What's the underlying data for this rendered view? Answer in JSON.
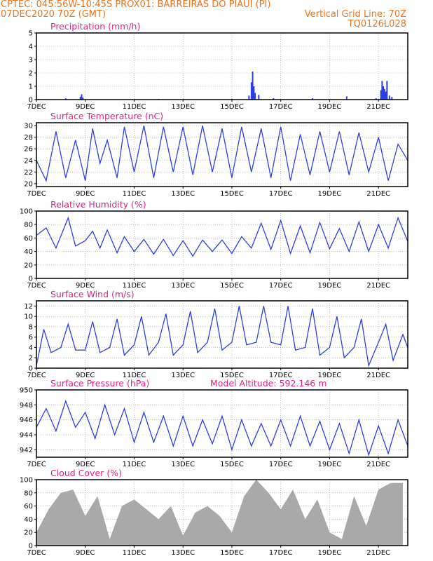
{
  "header": {
    "line1_left": "CPTEC:   045:56W-10:45S   PROX01: BARREIRAS DO PIAUI (PI)",
    "line2_left": "07DEC2020 70Z (GMT)",
    "line2_right": "Vertical Grid Line: 70Z",
    "line3_right": "TQ0126L028"
  },
  "colors": {
    "header": "#e8741c",
    "title": "#e0228a",
    "line": "#2c3fe0",
    "cloud": "#a9a9a9",
    "grid": "#9a9a9a"
  },
  "x_tick_labels": [
    "7DEC",
    "9DEC",
    "11DEC",
    "13DEC",
    "15DEC",
    "17DEC",
    "19DEC",
    "21DEC"
  ],
  "x_tick_days": [
    7,
    9,
    11,
    13,
    15,
    17,
    19,
    21
  ],
  "x_range_days": [
    7,
    22.2
  ],
  "chart_data": [
    {
      "type": "bar",
      "title": "Precipitation (mm/h)",
      "ylim": [
        0,
        5
      ],
      "yticks": [
        "0",
        "1",
        "2",
        "3",
        "4",
        "5"
      ],
      "x_days": [
        7.1,
        8.2,
        8.8,
        8.85,
        8.9,
        12.0,
        15.0,
        15.7,
        15.8,
        15.85,
        15.9,
        15.95,
        16.1,
        16.7,
        18.3,
        19.7,
        20.9,
        21.1,
        21.15,
        21.2,
        21.25,
        21.3,
        21.35,
        21.45,
        21.55
      ],
      "values": [
        0.05,
        0.1,
        0.2,
        0.4,
        0.15,
        0.05,
        0.05,
        0.3,
        1.3,
        2.1,
        1.0,
        0.5,
        0.35,
        0.1,
        0.1,
        0.25,
        0.1,
        0.7,
        1.4,
        1.0,
        0.8,
        0.6,
        1.4,
        0.3,
        0.2
      ]
    },
    {
      "type": "line",
      "title": "Surface Temperature (nC)",
      "ylim": [
        19.5,
        30.5
      ],
      "yticks": [
        "20",
        "22",
        "24",
        "26",
        "28",
        "30"
      ],
      "x_days": [
        7.0,
        7.4,
        7.8,
        8.2,
        8.6,
        9.0,
        9.3,
        9.6,
        9.9,
        10.3,
        10.6,
        11.0,
        11.4,
        11.8,
        12.2,
        12.6,
        13.0,
        13.4,
        13.8,
        14.2,
        14.6,
        15.0,
        15.4,
        15.8,
        16.2,
        16.6,
        17.0,
        17.4,
        17.8,
        18.2,
        18.6,
        19.0,
        19.4,
        19.8,
        20.2,
        20.6,
        21.0,
        21.4,
        21.8,
        22.2
      ],
      "values": [
        24,
        20.5,
        29,
        21,
        27.5,
        20.5,
        29.5,
        23.5,
        27.5,
        21,
        29.8,
        22,
        30,
        21,
        29.8,
        22,
        29.8,
        21.5,
        30,
        22,
        29.5,
        21,
        29.8,
        22,
        29.5,
        21,
        29.8,
        20.5,
        28.5,
        21.5,
        29,
        22,
        29,
        21.5,
        28.8,
        22,
        28,
        20.5,
        26.8,
        24
      ]
    },
    {
      "type": "line",
      "title": "Relative Humidity (%)",
      "ylim": [
        0,
        100
      ],
      "yticks": [
        "0",
        "20",
        "40",
        "60",
        "80",
        "100"
      ],
      "x_days": [
        7.0,
        7.4,
        7.8,
        8.3,
        8.6,
        9.0,
        9.3,
        9.6,
        9.9,
        10.3,
        10.6,
        11.0,
        11.4,
        11.8,
        12.2,
        12.6,
        13.0,
        13.4,
        13.8,
        14.2,
        14.6,
        15.0,
        15.4,
        15.8,
        16.2,
        16.6,
        17.0,
        17.4,
        17.8,
        18.2,
        18.6,
        19.0,
        19.4,
        19.8,
        20.2,
        20.6,
        21.0,
        21.4,
        21.8,
        22.2
      ],
      "values": [
        64,
        75,
        45,
        90,
        48,
        56,
        70,
        45,
        72,
        38,
        62,
        40,
        58,
        36,
        58,
        34,
        56,
        33,
        57,
        40,
        57,
        37,
        62,
        45,
        82,
        43,
        86,
        37,
        78,
        38,
        83,
        44,
        74,
        40,
        84,
        40,
        80,
        45,
        90,
        55
      ]
    },
    {
      "type": "line",
      "title": "Surface Wind (m/s)",
      "ylim": [
        0,
        13
      ],
      "yticks": [
        "0",
        "2",
        "4",
        "6",
        "8",
        "10",
        "12"
      ],
      "x_days": [
        7.0,
        7.3,
        7.6,
        8.0,
        8.3,
        8.6,
        9.0,
        9.3,
        9.6,
        10.0,
        10.3,
        10.6,
        11.0,
        11.3,
        11.6,
        12.0,
        12.3,
        12.6,
        13.0,
        13.3,
        13.6,
        14.0,
        14.3,
        14.6,
        15.0,
        15.3,
        15.6,
        16.0,
        16.3,
        16.6,
        17.0,
        17.3,
        17.6,
        18.0,
        18.3,
        18.6,
        19.0,
        19.3,
        19.6,
        20.0,
        20.3,
        20.6,
        21.0,
        21.3,
        21.6,
        22.0,
        22.2
      ],
      "values": [
        0.5,
        7.5,
        3.0,
        4.0,
        8.5,
        3.5,
        3.5,
        9.0,
        3.0,
        4.0,
        9.5,
        2.5,
        4.5,
        10.0,
        2.5,
        5.0,
        10.5,
        2.5,
        4.5,
        11.0,
        3.0,
        5.0,
        11.5,
        3.5,
        5.0,
        12.0,
        4.5,
        5.0,
        12.0,
        5.0,
        4.5,
        12.0,
        3.5,
        4.0,
        11.5,
        2.5,
        4.0,
        10.0,
        2.0,
        4.0,
        9.5,
        0.5,
        5.0,
        8.5,
        1.5,
        6.5,
        4.0
      ]
    },
    {
      "type": "line",
      "title": "Surface Pressure (hPa)",
      "annotation": "Model Altitude: 592.146 m",
      "ylim": [
        941,
        950
      ],
      "yticks": [
        "942",
        "944",
        "946",
        "948",
        "950"
      ],
      "x_days": [
        7.0,
        7.4,
        7.8,
        8.2,
        8.6,
        9.0,
        9.4,
        9.8,
        10.2,
        10.6,
        11.0,
        11.4,
        11.8,
        12.2,
        12.6,
        13.0,
        13.4,
        13.8,
        14.2,
        14.6,
        15.0,
        15.4,
        15.8,
        16.2,
        16.6,
        17.0,
        17.4,
        17.8,
        18.2,
        18.6,
        19.0,
        19.4,
        19.8,
        20.2,
        20.6,
        21.0,
        21.4,
        21.8,
        22.2
      ],
      "values": [
        945,
        947.5,
        944.5,
        948.5,
        945,
        947,
        943.5,
        948,
        944,
        947.5,
        943,
        947,
        943,
        946.5,
        942.5,
        946.5,
        942.5,
        946,
        942.8,
        946.5,
        942,
        946,
        942.5,
        945.5,
        942.5,
        946,
        942.5,
        946.5,
        942.5,
        945.8,
        942,
        945.5,
        941.5,
        946,
        941.3,
        945.2,
        941.5,
        946,
        942.5
      ]
    },
    {
      "type": "area",
      "title": "Cloud Cover (%)",
      "ylim": [
        0,
        100
      ],
      "yticks": [
        "0",
        "20",
        "40",
        "60",
        "80",
        "100"
      ],
      "x_days": [
        7.0,
        7.5,
        8.0,
        8.5,
        9.0,
        9.5,
        10.0,
        10.5,
        11.0,
        11.5,
        12.0,
        12.5,
        13.0,
        13.5,
        14.0,
        14.5,
        15.0,
        15.5,
        16.0,
        16.5,
        17.0,
        17.5,
        18.0,
        18.5,
        19.0,
        19.5,
        20.0,
        20.5,
        21.0,
        21.5,
        22.0
      ],
      "values": [
        20,
        55,
        80,
        85,
        45,
        75,
        10,
        60,
        70,
        55,
        40,
        60,
        15,
        50,
        60,
        45,
        20,
        75,
        100,
        80,
        55,
        85,
        40,
        70,
        20,
        10,
        75,
        30,
        85,
        95,
        95
      ]
    }
  ]
}
